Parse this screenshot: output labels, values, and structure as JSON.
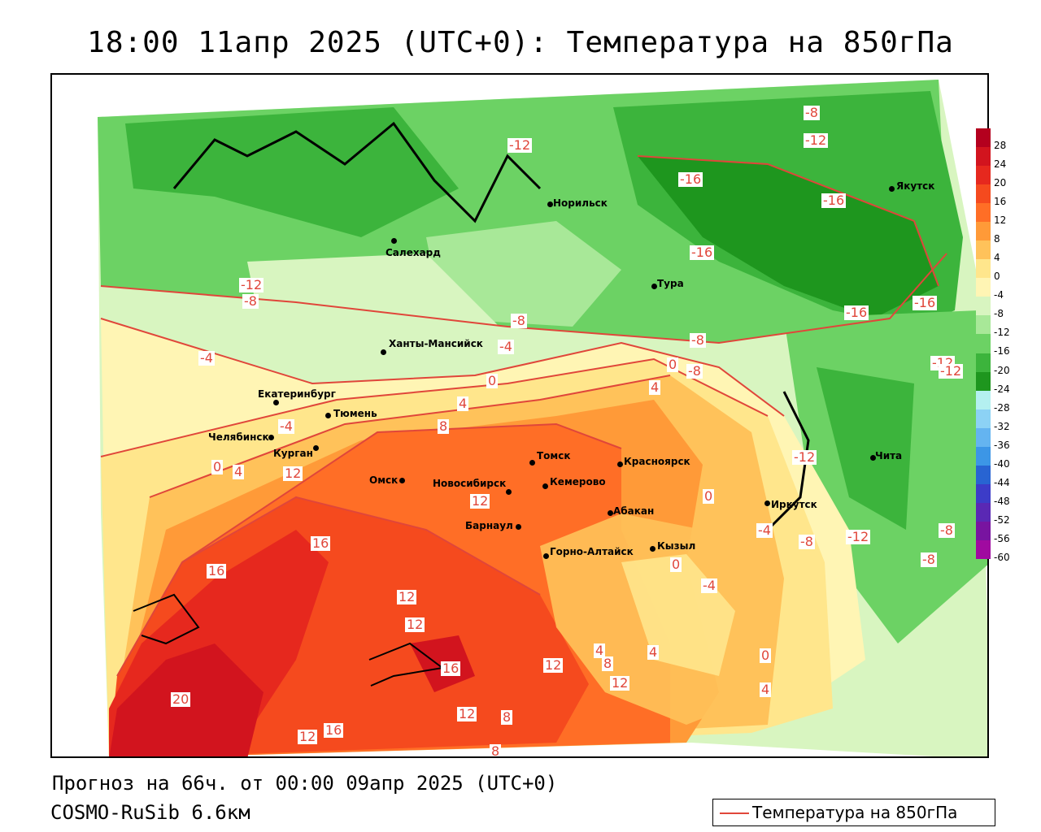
{
  "title": "18:00 11апр 2025 (UTC+0): Температура на 850гПа",
  "footer": {
    "forecast": "Прогноз на 66ч. от 00:00 09апр 2025 (UTC+0)",
    "model": "COSMO-RuSib 6.6км"
  },
  "legend": {
    "label": "Температура на 850гПа",
    "line_color": "#e0463a"
  },
  "colorbar": {
    "ticks": [
      "28",
      "24",
      "20",
      "16",
      "12",
      "8",
      "4",
      "0",
      "-4",
      "-8",
      "-12",
      "-16",
      "-20",
      "-24",
      "-28",
      "-32",
      "-36",
      "-40",
      "-44",
      "-48",
      "-52",
      "-56",
      "-60"
    ],
    "colors": [
      "#b4001e",
      "#d2141e",
      "#e6281e",
      "#f54a1e",
      "#ff6e26",
      "#ff9a38",
      "#ffc25a",
      "#ffe68c",
      "#fff5b4",
      "#d8f5c0",
      "#a8e898",
      "#6cd264",
      "#3cb43c",
      "#1e961e",
      "#b4f0f0",
      "#8cd2f5",
      "#64b4f0",
      "#3c96e6",
      "#2864d2",
      "#3c3cc8",
      "#5a28b4",
      "#7814a0",
      "#a00aa0"
    ]
  },
  "cities": [
    {
      "name": "Салехард"
    },
    {
      "name": "Норильск"
    },
    {
      "name": "Якутск"
    },
    {
      "name": "Тура"
    },
    {
      "name": "Ханты-Мансийск"
    },
    {
      "name": "Екатеринбург"
    },
    {
      "name": "Тюмень"
    },
    {
      "name": "Челябинск"
    },
    {
      "name": "Курган"
    },
    {
      "name": "Омск"
    },
    {
      "name": "Новосибирск"
    },
    {
      "name": "Томск"
    },
    {
      "name": "Кемерово"
    },
    {
      "name": "Красноярск"
    },
    {
      "name": "Барнаул"
    },
    {
      "name": "Абакан"
    },
    {
      "name": "Горно-Алтайск"
    },
    {
      "name": "Кызыл"
    },
    {
      "name": "Иркутск"
    },
    {
      "name": "Чита"
    }
  ],
  "contour_labels": [
    "-12",
    "-8",
    "-12",
    "-16",
    "-16",
    "-16",
    "-12",
    "-8",
    "-4",
    "-8",
    "-16",
    "-16",
    "-12",
    "-12",
    "-4",
    "0",
    "0",
    "4",
    "4",
    "8",
    "-4",
    "0",
    "4",
    "12",
    "12",
    "16",
    "16",
    "12",
    "12",
    "12",
    "16",
    "12",
    "8",
    "20",
    "12",
    "16",
    "8",
    "4",
    "8",
    "12",
    "4",
    "0",
    "4",
    "-8",
    "-12",
    "-8",
    "-8",
    "-4",
    "0",
    "-4",
    "-12",
    "0",
    "-8",
    "-8"
  ]
}
